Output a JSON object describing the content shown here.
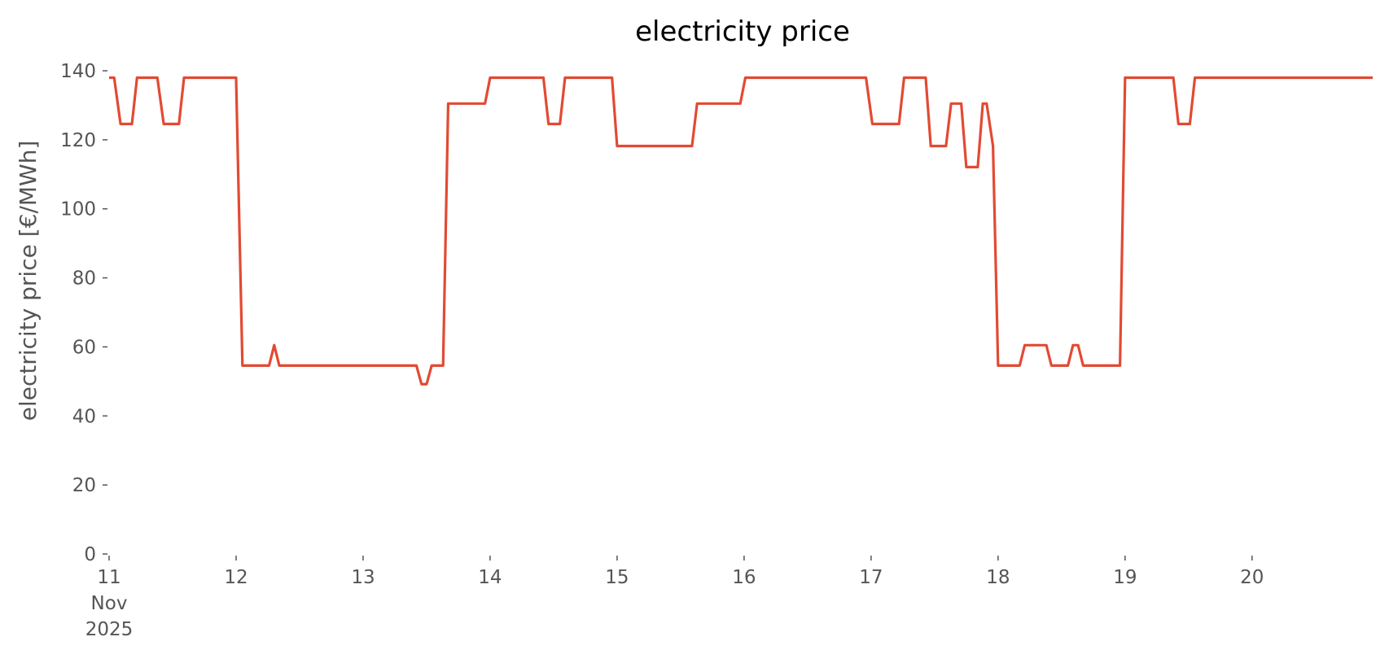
{
  "chart_data": {
    "type": "line",
    "title": "electricity price",
    "y_label": "electricity price [€/MWh]",
    "x": [
      11.0,
      11.04,
      11.09,
      11.18,
      11.22,
      11.38,
      11.43,
      11.55,
      11.59,
      12.0,
      12.05,
      12.26,
      12.3,
      12.34,
      13.42,
      13.46,
      13.5,
      13.54,
      13.63,
      13.67,
      13.96,
      14.0,
      14.42,
      14.46,
      14.55,
      14.59,
      14.96,
      15.0,
      15.59,
      15.63,
      15.97,
      16.01,
      16.96,
      17.01,
      17.22,
      17.26,
      17.43,
      17.47,
      17.59,
      17.63,
      17.71,
      17.75,
      17.84,
      17.88,
      17.91,
      17.96,
      18.0,
      18.17,
      18.21,
      18.38,
      18.42,
      18.55,
      18.59,
      18.63,
      18.67,
      18.96,
      19.0,
      19.38,
      19.42,
      19.51,
      19.55,
      20.95
    ],
    "series": [
      {
        "name": "electricity price",
        "color": "#e24a33",
        "values": [
          138,
          138,
          124.6,
          124.6,
          138,
          138,
          124.6,
          124.6,
          138,
          138,
          54.6,
          54.6,
          60.5,
          54.6,
          54.6,
          49.2,
          49.2,
          54.6,
          54.6,
          130.5,
          130.5,
          138,
          138,
          124.6,
          124.6,
          138,
          138,
          118.2,
          118.2,
          130.5,
          130.5,
          138,
          138,
          124.6,
          124.6,
          138,
          138,
          118.2,
          118.2,
          130.5,
          130.5,
          112.1,
          112.1,
          130.5,
          130.5,
          118.2,
          54.6,
          54.6,
          60.5,
          60.5,
          54.6,
          54.6,
          60.5,
          60.5,
          54.6,
          54.6,
          138,
          138,
          124.6,
          124.6,
          138,
          138
        ]
      }
    ],
    "xlim": [
      11,
      20.95
    ],
    "xticks": [
      {
        "value": 11,
        "label": "11 Nov 2025"
      },
      12,
      13,
      14,
      15,
      16,
      17,
      18,
      19,
      20
    ],
    "ylim": [
      0,
      140
    ],
    "yticks": [
      0,
      20,
      40,
      60,
      80,
      100,
      120,
      140
    ],
    "grid": false
  }
}
